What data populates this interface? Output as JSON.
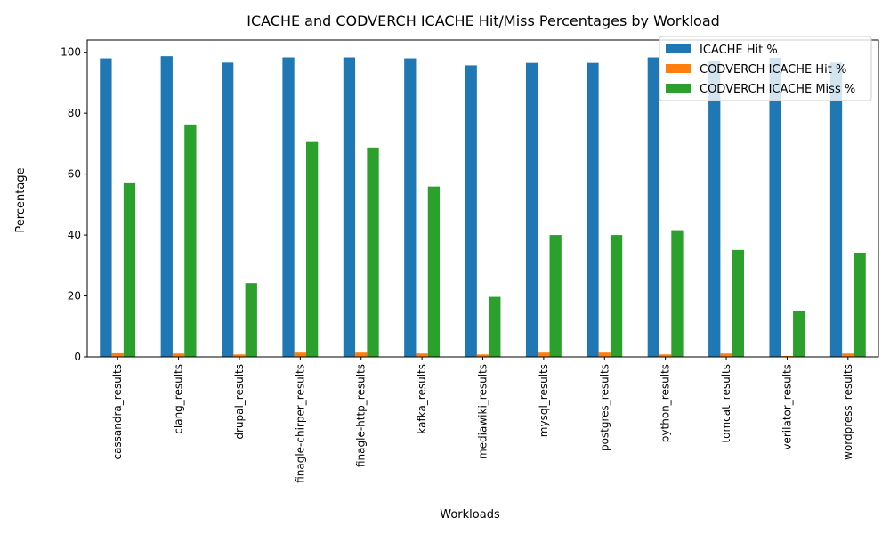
{
  "chart_data": {
    "type": "bar",
    "title": "ICACHE and CODVERCH ICACHE Hit/Miss Percentages by Workload",
    "xlabel": "Workloads",
    "ylabel": "Percentage",
    "ylim": [
      0,
      104
    ],
    "yticks": [
      0,
      20,
      40,
      60,
      80,
      100
    ],
    "grid": false,
    "legend_position": "top-right",
    "categories": [
      "cassandra_results",
      "clang_results",
      "drupal_results",
      "finagle-chirper_results",
      "finagle-http_results",
      "kafka_results",
      "mediawiki_results",
      "mysql_results",
      "postgres_results",
      "python_results",
      "tomcat_results",
      "verilator_results",
      "wordpress_results"
    ],
    "series": [
      {
        "name": "ICACHE Hit %",
        "color": "#1f77b4",
        "values": [
          98.0,
          98.7,
          96.6,
          98.3,
          98.3,
          98.0,
          95.7,
          96.5,
          96.5,
          98.3,
          97.0,
          98.2,
          96.6
        ]
      },
      {
        "name": "CODVERCH ICACHE Hit %",
        "color": "#ff7f0e",
        "values": [
          1.2,
          1.1,
          0.8,
          1.4,
          1.4,
          1.1,
          0.8,
          1.4,
          1.4,
          0.8,
          1.1,
          0.3,
          1.1
        ]
      },
      {
        "name": "CODVERCH ICACHE Miss %",
        "color": "#2ca02c",
        "values": [
          57.0,
          76.3,
          24.2,
          70.8,
          68.7,
          55.9,
          19.7,
          40.0,
          40.0,
          41.6,
          35.1,
          15.2,
          34.2
        ]
      }
    ]
  }
}
